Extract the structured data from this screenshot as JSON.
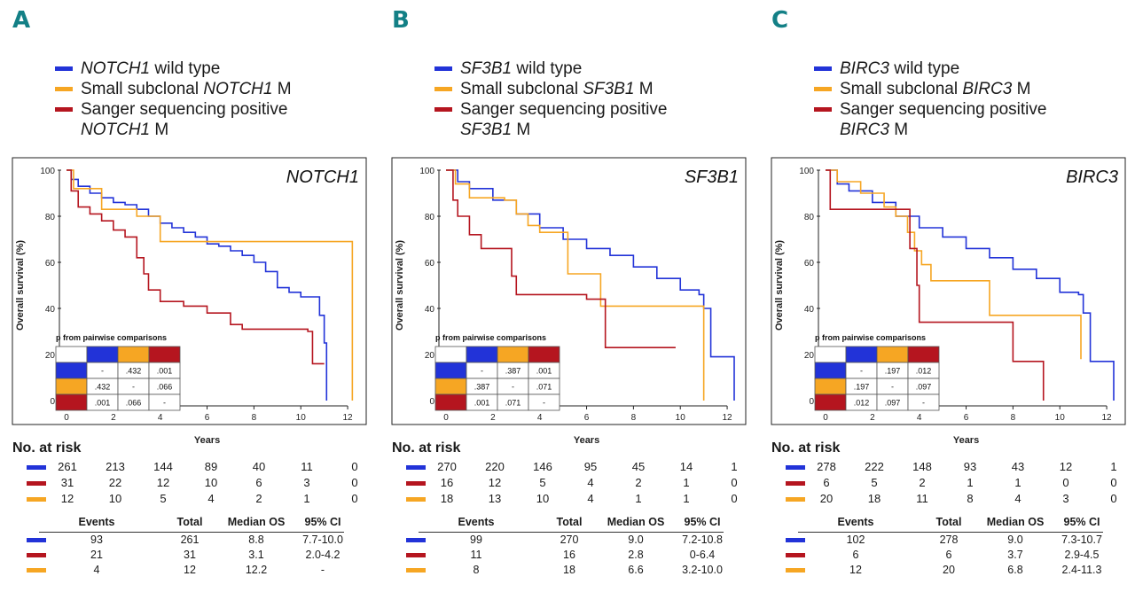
{
  "colors": {
    "blue": "#2233d8",
    "orange": "#f6a623",
    "red": "#b5151f",
    "letter": "#138086"
  },
  "panels": [
    {
      "letter": "A",
      "gene": "NOTCH1",
      "legend": {
        "wt": {
          "gene": "NOTCH1",
          "text": " wild type"
        },
        "sub": {
          "pre": "Small subclonal ",
          "gene": "NOTCH1",
          "post": " M"
        },
        "sanger": {
          "line1": "Sanger sequencing positive",
          "gene": "NOTCH1",
          "post": " M"
        }
      },
      "pval_title": "p from pairwise comparisons",
      "pvals": [
        [
          "-",
          ".432",
          ".001"
        ],
        [
          ".432",
          "-",
          ".066"
        ],
        [
          ".001",
          ".066",
          "-"
        ]
      ],
      "risk": {
        "title": "No. at risk",
        "rows": [
          {
            "color": "blue",
            "vals": [
              "261",
              "213",
              "144",
              "89",
              "40",
              "11",
              "0"
            ]
          },
          {
            "color": "red",
            "vals": [
              "31",
              "22",
              "12",
              "10",
              "6",
              "3",
              "0"
            ]
          },
          {
            "color": "orange",
            "vals": [
              "12",
              "10",
              "5",
              "4",
              "2",
              "1",
              "0"
            ]
          }
        ]
      },
      "events": {
        "headers": [
          "Events",
          "Total",
          "Median OS",
          "95% CI"
        ],
        "rows": [
          {
            "color": "blue",
            "vals": [
              "93",
              "261",
              "8.8",
              "7.7-10.0"
            ]
          },
          {
            "color": "red",
            "vals": [
              "21",
              "31",
              "3.1",
              "2.0-4.2"
            ]
          },
          {
            "color": "orange",
            "vals": [
              "4",
              "12",
              "12.2",
              "-"
            ]
          }
        ]
      }
    },
    {
      "letter": "B",
      "gene": "SF3B1",
      "legend": {
        "wt": {
          "gene": "SF3B1",
          "text": " wild type"
        },
        "sub": {
          "pre": "Small subclonal ",
          "gene": "SF3B1",
          "post": " M"
        },
        "sanger": {
          "line1": "Sanger sequencing positive",
          "gene": "SF3B1",
          "post": " M"
        }
      },
      "pval_title": "p from pairwise comparisons",
      "pvals": [
        [
          "-",
          ".387",
          ".001"
        ],
        [
          ".387",
          "-",
          ".071"
        ],
        [
          ".001",
          ".071",
          "-"
        ]
      ],
      "risk": {
        "title": "No. at risk",
        "rows": [
          {
            "color": "blue",
            "vals": [
              "270",
              "220",
              "146",
              "95",
              "45",
              "14",
              "1"
            ]
          },
          {
            "color": "red",
            "vals": [
              "16",
              "12",
              "5",
              "4",
              "2",
              "1",
              "0"
            ]
          },
          {
            "color": "orange",
            "vals": [
              "18",
              "13",
              "10",
              "4",
              "1",
              "1",
              "0"
            ]
          }
        ]
      },
      "events": {
        "headers": [
          "Events",
          "Total",
          "Median OS",
          "95% CI"
        ],
        "rows": [
          {
            "color": "blue",
            "vals": [
              "99",
              "270",
              "9.0",
              "7.2-10.8"
            ]
          },
          {
            "color": "red",
            "vals": [
              "11",
              "16",
              "2.8",
              "0-6.4"
            ]
          },
          {
            "color": "orange",
            "vals": [
              "8",
              "18",
              "6.6",
              "3.2-10.0"
            ]
          }
        ]
      }
    },
    {
      "letter": "C",
      "gene": "BIRC3",
      "legend": {
        "wt": {
          "gene": "BIRC3",
          "text": " wild type"
        },
        "sub": {
          "pre": "Small subclonal ",
          "gene": "BIRC3",
          "post": " M"
        },
        "sanger": {
          "line1": "Sanger sequencing positive",
          "gene": "BIRC3",
          "post": " M"
        }
      },
      "pval_title": "p from pairwise comparisons",
      "pvals": [
        [
          "-",
          ".197",
          ".012"
        ],
        [
          ".197",
          "-",
          ".097"
        ],
        [
          ".012",
          ".097",
          "-"
        ]
      ],
      "risk": {
        "title": "No. at risk",
        "rows": [
          {
            "color": "blue",
            "vals": [
              "278",
              "222",
              "148",
              "93",
              "43",
              "12",
              "1"
            ]
          },
          {
            "color": "red",
            "vals": [
              "6",
              "5",
              "2",
              "1",
              "1",
              "0",
              "0"
            ]
          },
          {
            "color": "orange",
            "vals": [
              "20",
              "18",
              "11",
              "8",
              "4",
              "3",
              "0"
            ]
          }
        ]
      },
      "events": {
        "headers": [
          "Events",
          "Total",
          "Median OS",
          "95% CI"
        ],
        "rows": [
          {
            "color": "blue",
            "vals": [
              "102",
              "278",
              "9.0",
              "7.3-10.7"
            ]
          },
          {
            "color": "red",
            "vals": [
              "6",
              "6",
              "3.7",
              "2.9-4.5"
            ]
          },
          {
            "color": "orange",
            "vals": [
              "12",
              "20",
              "6.8",
              "2.4-11.3"
            ]
          }
        ]
      }
    }
  ],
  "chart_data": [
    {
      "type": "line",
      "title": "NOTCH1",
      "xlabel": "Years",
      "ylabel": "Overall survival (%)",
      "xlim": [
        -0.5,
        12.5
      ],
      "ylim": [
        -2,
        102
      ],
      "xticks": [
        0,
        2,
        4,
        6,
        8,
        10,
        12
      ],
      "yticks": [
        0,
        20,
        40,
        60,
        80,
        100
      ],
      "series": [
        {
          "name": "NOTCH1 wild type",
          "color": "blue",
          "points": [
            [
              0,
              100
            ],
            [
              0.2,
              96
            ],
            [
              0.5,
              93
            ],
            [
              1,
              90
            ],
            [
              1.5,
              88
            ],
            [
              2,
              86
            ],
            [
              2.5,
              85
            ],
            [
              3,
              83
            ],
            [
              3.5,
              80
            ],
            [
              4,
              77
            ],
            [
              4.5,
              75
            ],
            [
              5,
              73
            ],
            [
              5.5,
              71
            ],
            [
              6,
              68
            ],
            [
              6.5,
              67
            ],
            [
              7,
              65
            ],
            [
              7.5,
              63
            ],
            [
              8,
              60
            ],
            [
              8.5,
              56
            ],
            [
              9,
              49
            ],
            [
              9.5,
              47
            ],
            [
              10,
              45
            ],
            [
              10.8,
              44
            ],
            [
              10.8,
              37
            ],
            [
              11,
              25
            ],
            [
              11.1,
              0
            ]
          ]
        },
        {
          "name": "Small subclonal NOTCH1 M",
          "color": "orange",
          "points": [
            [
              0,
              100
            ],
            [
              0.3,
              92
            ],
            [
              1.5,
              92
            ],
            [
              1.5,
              83
            ],
            [
              2.5,
              83
            ],
            [
              3,
              80
            ],
            [
              4,
              69
            ],
            [
              12.2,
              69
            ],
            [
              12.2,
              0
            ]
          ]
        },
        {
          "name": "Sanger sequencing positive NOTCH1 M",
          "color": "red",
          "points": [
            [
              0,
              100
            ],
            [
              0.2,
              91
            ],
            [
              0.5,
              84
            ],
            [
              1,
              81
            ],
            [
              1.5,
              78
            ],
            [
              2,
              74
            ],
            [
              2.5,
              71
            ],
            [
              3,
              62
            ],
            [
              3.3,
              55
            ],
            [
              3.5,
              48
            ],
            [
              4,
              43
            ],
            [
              5,
              41
            ],
            [
              6,
              38
            ],
            [
              7,
              33
            ],
            [
              7.5,
              31
            ],
            [
              10.3,
              30
            ],
            [
              10.5,
              16
            ],
            [
              11,
              16
            ]
          ]
        }
      ]
    },
    {
      "type": "line",
      "title": "SF3B1",
      "xlabel": "Years",
      "ylabel": "Overall survival (%)",
      "xlim": [
        -0.5,
        12.5
      ],
      "ylim": [
        -2,
        102
      ],
      "xticks": [
        0,
        2,
        4,
        6,
        8,
        10,
        12
      ],
      "yticks": [
        0,
        20,
        40,
        60,
        80,
        100
      ],
      "series": [
        {
          "name": "SF3B1 wild type",
          "color": "blue",
          "points": [
            [
              0,
              100
            ],
            [
              0.5,
              95
            ],
            [
              1,
              92
            ],
            [
              2,
              87
            ],
            [
              3,
              81
            ],
            [
              4,
              75
            ],
            [
              5,
              70
            ],
            [
              6,
              66
            ],
            [
              7,
              63
            ],
            [
              8,
              58
            ],
            [
              9,
              53
            ],
            [
              10,
              48
            ],
            [
              10.8,
              46
            ],
            [
              11,
              40
            ],
            [
              11.3,
              19
            ],
            [
              12.2,
              19
            ],
            [
              12.3,
              0
            ]
          ]
        },
        {
          "name": "Small subclonal SF3B1 M",
          "color": "orange",
          "points": [
            [
              0,
              100
            ],
            [
              0.4,
              94
            ],
            [
              1,
              88
            ],
            [
              2.5,
              87
            ],
            [
              3,
              81
            ],
            [
              3.5,
              76
            ],
            [
              4,
              73
            ],
            [
              5,
              73
            ],
            [
              5.2,
              55
            ],
            [
              6,
              55
            ],
            [
              6.6,
              41
            ],
            [
              10.8,
              41
            ],
            [
              11,
              0
            ]
          ]
        },
        {
          "name": "Sanger sequencing positive SF3B1 M",
          "color": "red",
          "points": [
            [
              0,
              100
            ],
            [
              0.3,
              87
            ],
            [
              0.5,
              80
            ],
            [
              1,
              72
            ],
            [
              1.5,
              66
            ],
            [
              2,
              66
            ],
            [
              2.5,
              66
            ],
            [
              2.8,
              54
            ],
            [
              3,
              46
            ],
            [
              5,
              46
            ],
            [
              6,
              44
            ],
            [
              6.8,
              23
            ],
            [
              9.8,
              23
            ]
          ]
        }
      ]
    },
    {
      "type": "line",
      "title": "BIRC3",
      "xlabel": "Years",
      "ylabel": "Overall survival (%)",
      "xlim": [
        -0.5,
        12.5
      ],
      "ylim": [
        -2,
        102
      ],
      "xticks": [
        0,
        2,
        4,
        6,
        8,
        10,
        12
      ],
      "yticks": [
        0,
        20,
        40,
        60,
        80,
        100
      ],
      "series": [
        {
          "name": "BIRC3 wild type",
          "color": "blue",
          "points": [
            [
              0,
              100
            ],
            [
              0.5,
              94
            ],
            [
              1,
              91
            ],
            [
              2,
              86
            ],
            [
              3,
              80
            ],
            [
              4,
              75
            ],
            [
              5,
              71
            ],
            [
              6,
              66
            ],
            [
              7,
              62
            ],
            [
              8,
              57
            ],
            [
              9,
              53
            ],
            [
              10,
              47
            ],
            [
              10.8,
              46
            ],
            [
              11,
              38
            ],
            [
              11.3,
              17
            ],
            [
              12.2,
              17
            ],
            [
              12.3,
              0
            ]
          ]
        },
        {
          "name": "Small subclonal BIRC3 M",
          "color": "orange",
          "points": [
            [
              0,
              100
            ],
            [
              0.5,
              95
            ],
            [
              1.5,
              90
            ],
            [
              2.5,
              84
            ],
            [
              3,
              80
            ],
            [
              3.5,
              73
            ],
            [
              3.8,
              65
            ],
            [
              4.1,
              59
            ],
            [
              4.5,
              52
            ],
            [
              6.8,
              52
            ],
            [
              7,
              37
            ],
            [
              10.8,
              37
            ],
            [
              10.9,
              18
            ]
          ]
        },
        {
          "name": "Sanger sequencing positive BIRC3 M",
          "color": "red",
          "points": [
            [
              0,
              100
            ],
            [
              0.2,
              83
            ],
            [
              3.3,
              83
            ],
            [
              3.6,
              66
            ],
            [
              3.9,
              50
            ],
            [
              4,
              34
            ],
            [
              8,
              34
            ],
            [
              8,
              17
            ],
            [
              9.3,
              17
            ],
            [
              9.3,
              0
            ]
          ]
        }
      ]
    }
  ]
}
